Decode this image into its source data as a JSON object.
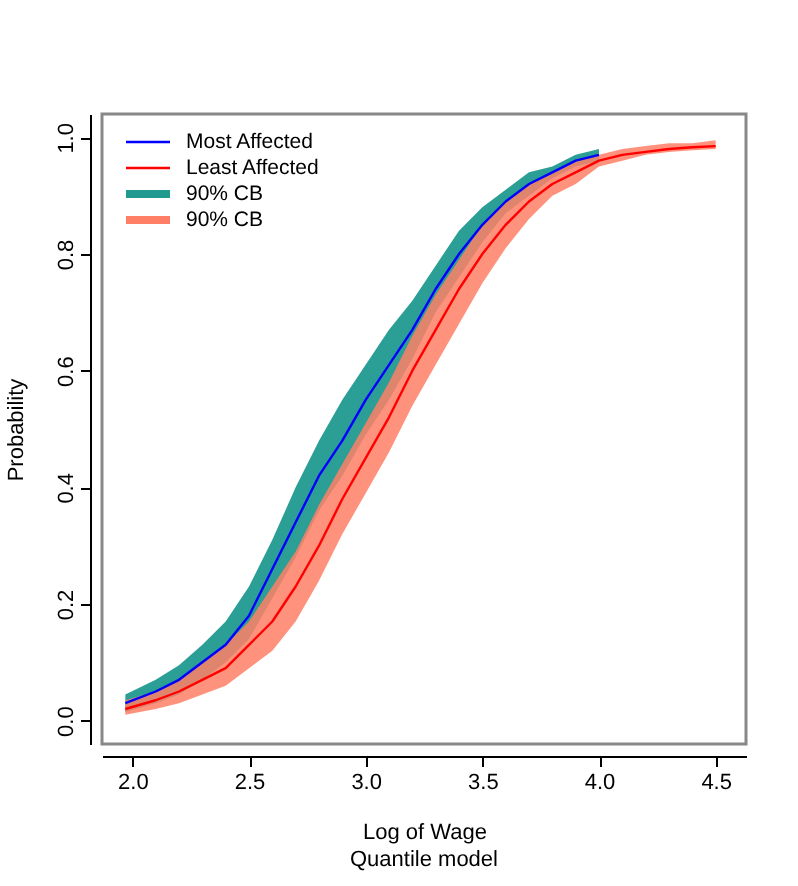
{
  "chart_data": {
    "type": "line",
    "xlabel": "Log of Wage",
    "ylabel": "Probability",
    "annotations": [
      "Quantile model",
      "90% CB",
      "90% CB"
    ],
    "xlim": [
      1.87,
      4.63
    ],
    "ylim": [
      -0.04,
      1.04
    ],
    "xticks": [
      {
        "value": 2,
        "label": "2.0"
      },
      {
        "value": 2.5,
        "label": "2.5"
      },
      {
        "value": 3,
        "label": "3.0"
      },
      {
        "value": 3.5,
        "label": "3.5"
      },
      {
        "value": 4,
        "label": "4.0"
      },
      {
        "value": 4.5,
        "label": "4.5"
      }
    ],
    "yticks": [
      {
        "value": 0,
        "label": "0.0"
      },
      {
        "value": 0.2,
        "label": "0.2"
      },
      {
        "value": 0.4,
        "label": "0.4"
      },
      {
        "value": 0.6,
        "label": "0.6"
      },
      {
        "value": 0.8,
        "label": "0.8"
      },
      {
        "value": 1,
        "label": "1.0"
      }
    ],
    "grid": false,
    "legend": "top left",
    "marker": "none",
    "line_style": "solid",
    "series": [
      {
        "name": "Most Affected",
        "type": "line",
        "color": "#0000ff",
        "x": [
          1.97,
          2.1,
          2.2,
          2.3,
          2.4,
          2.5,
          2.6,
          2.7,
          2.8,
          2.9,
          3.0,
          3.1,
          3.2,
          3.3,
          3.4,
          3.5,
          3.6,
          3.7,
          3.8,
          3.9,
          4.0
        ],
        "values": [
          0.03,
          0.05,
          0.07,
          0.1,
          0.13,
          0.18,
          0.26,
          0.34,
          0.42,
          0.48,
          0.55,
          0.61,
          0.67,
          0.74,
          0.8,
          0.85,
          0.89,
          0.92,
          0.94,
          0.96,
          0.97
        ],
        "lower": [
          0.015,
          0.03,
          0.045,
          0.07,
          0.1,
          0.14,
          0.21,
          0.28,
          0.36,
          0.42,
          0.49,
          0.55,
          0.62,
          0.7,
          0.76,
          0.82,
          0.87,
          0.9,
          0.93,
          0.95,
          0.96
        ],
        "upper": [
          0.045,
          0.07,
          0.095,
          0.13,
          0.17,
          0.23,
          0.31,
          0.4,
          0.48,
          0.55,
          0.61,
          0.67,
          0.72,
          0.78,
          0.84,
          0.88,
          0.91,
          0.94,
          0.95,
          0.97,
          0.98
        ]
      },
      {
        "name": "Least Affected",
        "type": "line",
        "color": "#ff0000",
        "x": [
          1.97,
          2.1,
          2.2,
          2.3,
          2.4,
          2.5,
          2.6,
          2.7,
          2.8,
          2.9,
          3.0,
          3.1,
          3.2,
          3.3,
          3.4,
          3.5,
          3.6,
          3.7,
          3.8,
          3.9,
          4.0,
          4.1,
          4.2,
          4.3,
          4.4,
          4.5
        ],
        "values": [
          0.02,
          0.035,
          0.05,
          0.07,
          0.09,
          0.13,
          0.17,
          0.23,
          0.3,
          0.38,
          0.45,
          0.52,
          0.6,
          0.67,
          0.74,
          0.8,
          0.85,
          0.89,
          0.92,
          0.94,
          0.96,
          0.97,
          0.975,
          0.98,
          0.983,
          0.985
        ],
        "lower": [
          0.01,
          0.02,
          0.03,
          0.045,
          0.06,
          0.09,
          0.12,
          0.17,
          0.24,
          0.32,
          0.39,
          0.46,
          0.54,
          0.61,
          0.68,
          0.75,
          0.81,
          0.86,
          0.9,
          0.92,
          0.95,
          0.96,
          0.97,
          0.975,
          0.978,
          0.98
        ],
        "upper": [
          0.035,
          0.05,
          0.07,
          0.1,
          0.13,
          0.17,
          0.23,
          0.29,
          0.37,
          0.44,
          0.51,
          0.58,
          0.66,
          0.73,
          0.79,
          0.85,
          0.89,
          0.92,
          0.94,
          0.96,
          0.97,
          0.98,
          0.985,
          0.99,
          0.99,
          0.995
        ]
      }
    ]
  }
}
